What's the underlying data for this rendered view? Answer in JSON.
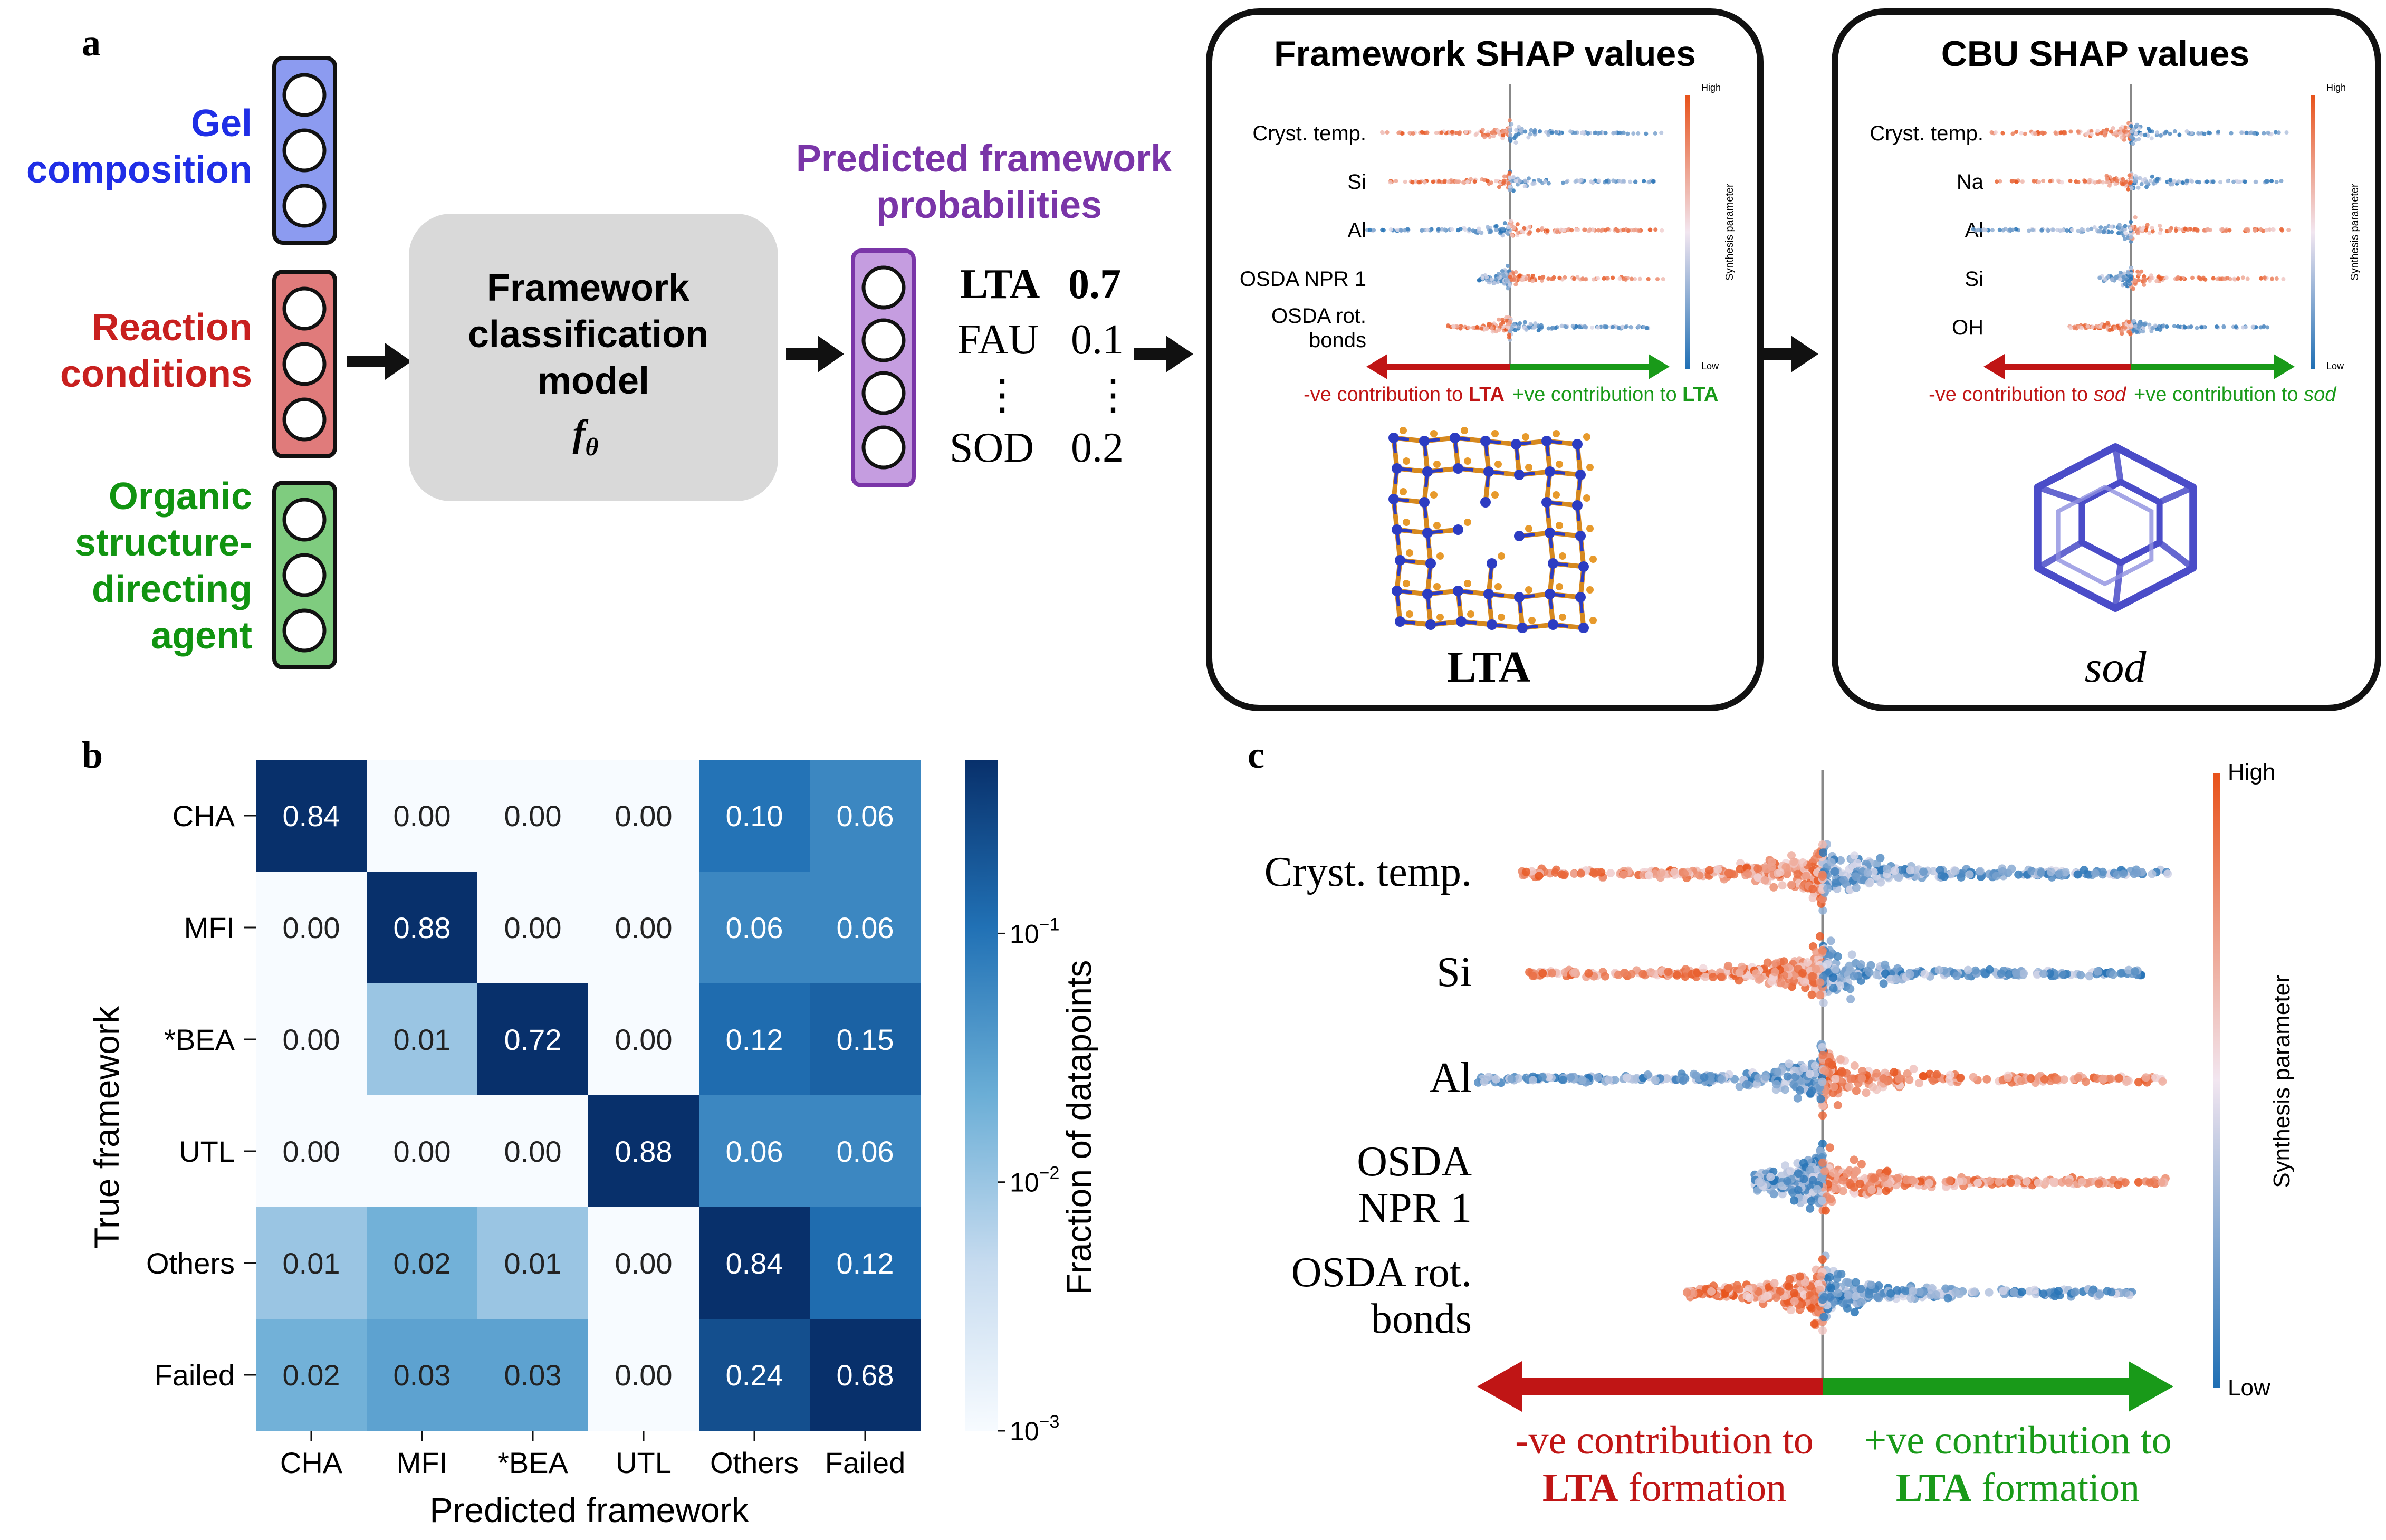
{
  "panel_a": {
    "letter": "a",
    "inputs": [
      {
        "lines": [
          "Gel",
          "composition"
        ],
        "color": "#1f2ee6",
        "fill": "#8c9bf0"
      },
      {
        "lines": [
          "Reaction",
          "conditions"
        ],
        "color": "#c8201f",
        "fill": "#e07b7b"
      },
      {
        "lines": [
          "Organic",
          "structure-",
          "directing",
          "agent"
        ],
        "color": "#119411",
        "fill": "#7fcc7f"
      }
    ],
    "model": {
      "lines": [
        "Framework",
        "classification",
        "model"
      ],
      "symbol": "f",
      "subscript": "θ"
    },
    "pred_title": [
      "Predicted framework",
      "probabilities"
    ],
    "pred_title_color": "#7a35a8",
    "pred_fill": "#c59de0",
    "predictions": [
      {
        "name": "LTA",
        "value": "0.7",
        "bold": true
      },
      {
        "name": "FAU",
        "value": "0.1",
        "bold": false
      },
      {
        "name": "⋮",
        "value": "⋮",
        "bold": false
      },
      {
        "name": "SOD",
        "value": "0.2",
        "bold": false
      }
    ],
    "framework_box": {
      "title": "Framework SHAP values",
      "features": [
        "Cryst. temp.",
        "Si",
        "Al",
        "OSDA NPR 1",
        "OSDA rot. bonds"
      ],
      "colorbar_high": "High",
      "colorbar_low": "Low",
      "colorbar_label": "Synthesis parameter",
      "neg_prefix": "-ve contribution to ",
      "pos_prefix": "+ve contribution to ",
      "target": "LTA",
      "structure_label": "LTA"
    },
    "cbu_box": {
      "title": "CBU SHAP values",
      "features": [
        "Cryst. temp.",
        "Na",
        "Al",
        "Si",
        "OH"
      ],
      "colorbar_high": "High",
      "colorbar_low": "Low",
      "colorbar_label": "Synthesis parameter",
      "neg_prefix": "-ve contribution to ",
      "pos_prefix": "+ve contribution to ",
      "target": "sod",
      "structure_label": "sod"
    }
  },
  "panel_b": {
    "letter": "b",
    "chart_data": {
      "type": "heatmap",
      "title": "",
      "xlabel": "Predicted framework",
      "ylabel": "True framework",
      "x_categories": [
        "CHA",
        "MFI",
        "*BEA",
        "UTL",
        "Others",
        "Failed"
      ],
      "y_categories": [
        "CHA",
        "MFI",
        "*BEA",
        "UTL",
        "Others",
        "Failed"
      ],
      "values": [
        [
          0.84,
          0.0,
          0.0,
          0.0,
          0.1,
          0.06
        ],
        [
          0.0,
          0.88,
          0.0,
          0.0,
          0.06,
          0.06
        ],
        [
          0.0,
          0.01,
          0.72,
          0.0,
          0.12,
          0.15
        ],
        [
          0.0,
          0.0,
          0.0,
          0.88,
          0.06,
          0.06
        ],
        [
          0.01,
          0.02,
          0.01,
          0.0,
          0.84,
          0.12
        ],
        [
          0.02,
          0.03,
          0.03,
          0.0,
          0.24,
          0.68
        ]
      ],
      "colorbar_label": "Fraction of datapoints",
      "colorbar_scale": "log",
      "colorbar_range": [
        0.001,
        0.5
      ],
      "colorbar_ticks": [
        {
          "base": "10",
          "exp": "−1",
          "value": 0.1
        },
        {
          "base": "10",
          "exp": "−2",
          "value": 0.01
        },
        {
          "base": "10",
          "exp": "−3",
          "value": 0.001
        }
      ]
    }
  },
  "panel_c": {
    "letter": "c",
    "features": [
      {
        "lines": [
          "Cryst. temp."
        ]
      },
      {
        "lines": [
          "Si"
        ]
      },
      {
        "lines": [
          "Al"
        ]
      },
      {
        "lines": [
          "OSDA",
          "NPR 1"
        ]
      },
      {
        "lines": [
          "OSDA rot.",
          "bonds"
        ]
      }
    ],
    "colorbar_high": "High",
    "colorbar_low": "Low",
    "colorbar_label": "Synthesis parameter",
    "neg_line1": "-ve contribution to",
    "pos_line1": "+ve contribution to",
    "target": "LTA",
    "line2_suffix": " formation"
  },
  "colors": {
    "neg": "#c01515",
    "pos": "#199a19",
    "shap_high": "#e8521a",
    "shap_low": "#1f6fb4"
  }
}
